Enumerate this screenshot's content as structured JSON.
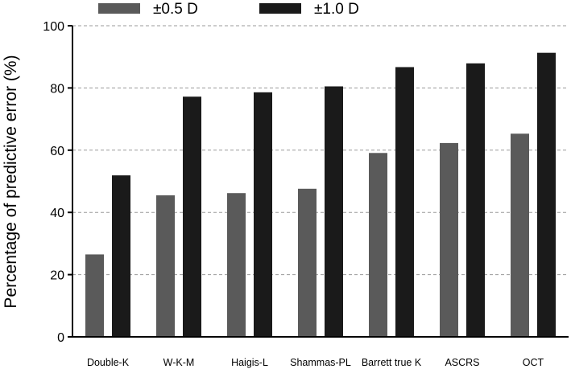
{
  "chart_data": {
    "type": "bar",
    "title": "",
    "xlabel": "",
    "ylabel": "Percentage of predictive error (%)",
    "ylim": [
      0,
      100
    ],
    "yticks": [
      0,
      20,
      40,
      60,
      80,
      100
    ],
    "grid": "horizontal dashed",
    "legend_position": "top",
    "categories": [
      "Double-K",
      "W-K-M",
      "Haigis-L",
      "Shammas-PL",
      "Barrett true K",
      "ASCRS",
      "OCT"
    ],
    "series": [
      {
        "name": "±0.5 D",
        "color": "#5a5a5a",
        "values": [
          26.5,
          45.5,
          46.2,
          47.6,
          59.1,
          62.3,
          65.3
        ]
      },
      {
        "name": "±1.0 D",
        "color": "#1a1a1a",
        "values": [
          51.9,
          77.2,
          78.6,
          80.5,
          86.7,
          87.9,
          91.3
        ]
      }
    ]
  }
}
